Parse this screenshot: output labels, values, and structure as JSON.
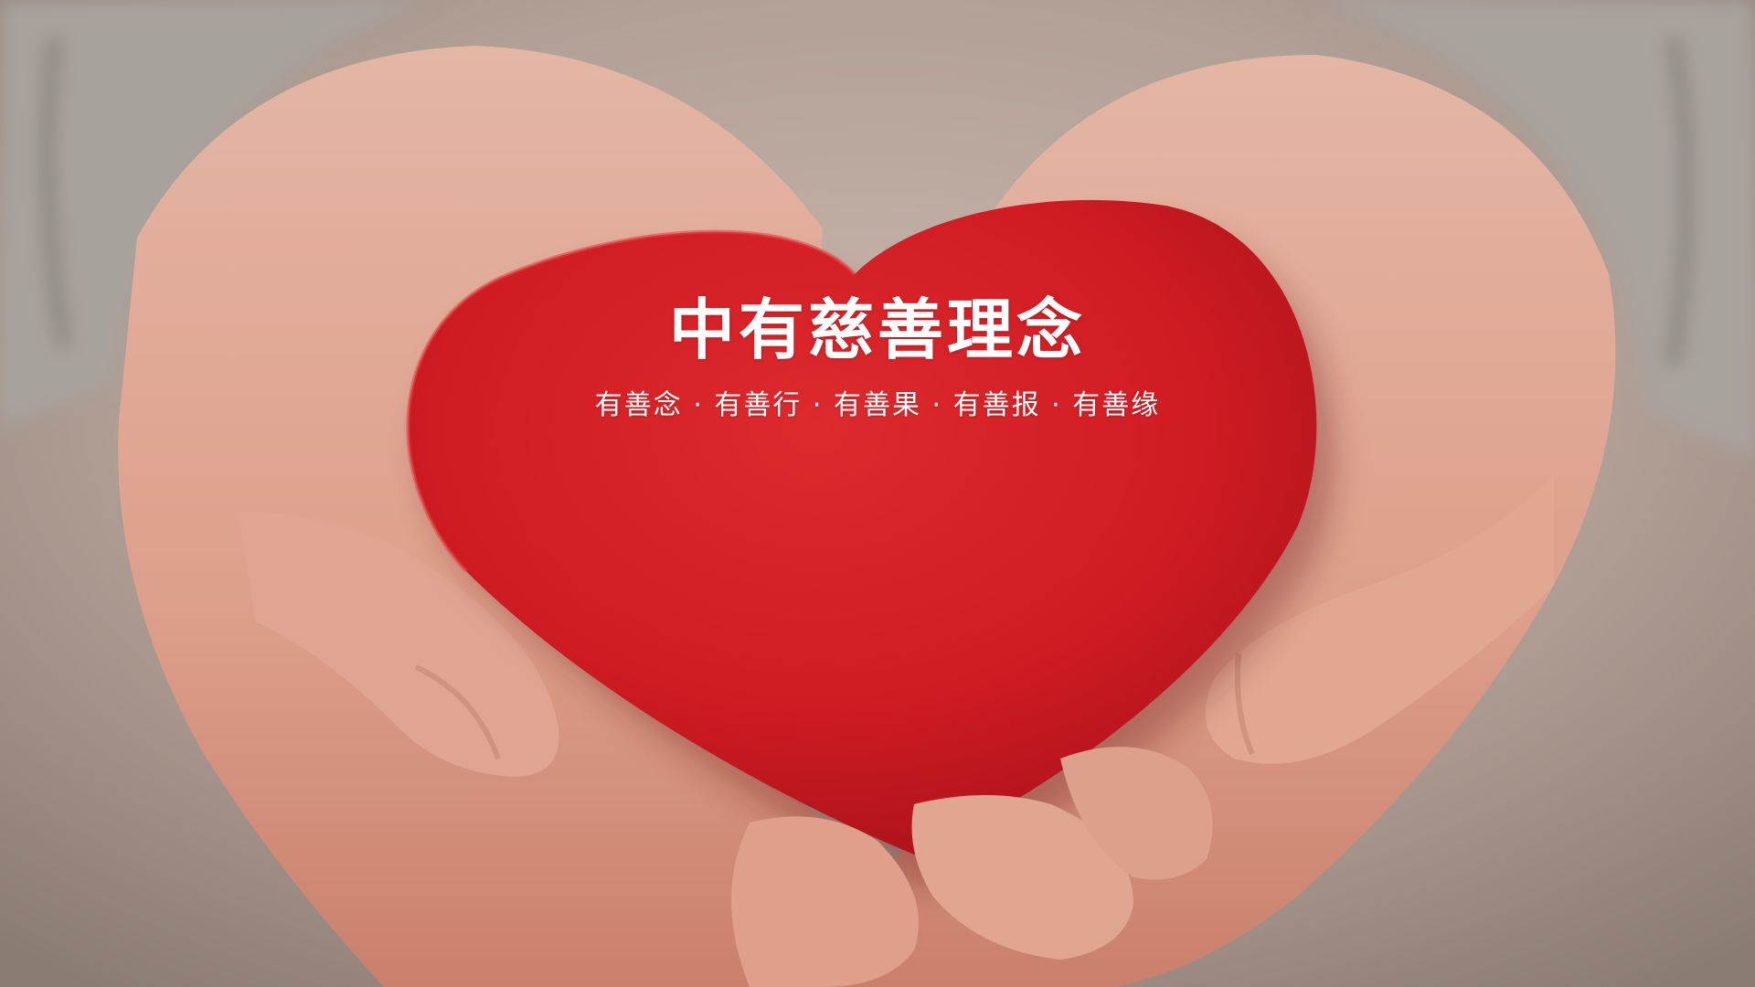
{
  "hero": {
    "title": "中有慈善理念",
    "subtitle": "有善念 · 有善行 · 有善果 · 有善报 · 有善缘",
    "image_icon": "heart-in-hands-photo",
    "colors": {
      "heart_red": "#d51e24",
      "skin": "#e2a795",
      "background": "#b5a49a",
      "text": "#ffffff"
    }
  }
}
